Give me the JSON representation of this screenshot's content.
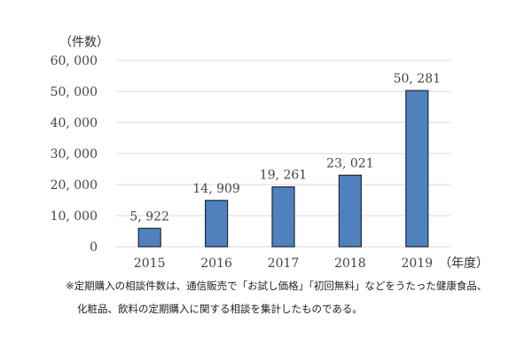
{
  "chart_data": {
    "type": "bar",
    "title": "",
    "ylabel": "（件数）",
    "xlabel": "（年度）",
    "categories": [
      "2015",
      "2016",
      "2017",
      "2018",
      "2019"
    ],
    "values": [
      5922,
      14909,
      19261,
      23021,
      50281
    ],
    "value_labels": [
      "5, 922",
      "14, 909",
      "19, 261",
      "23, 021",
      "50, 281"
    ],
    "ylim": [
      0,
      60000
    ],
    "yticks": [
      0,
      10000,
      20000,
      30000,
      40000,
      50000,
      60000
    ],
    "ytick_labels": [
      "0",
      "10, 000",
      "20, 000",
      "30, 000",
      "40, 000",
      "50, 000",
      "60, 000"
    ],
    "grid": true,
    "bar_color": "#4f81bd",
    "bar_edge_color": "#1f2a38",
    "grid_color": "#d9d9d9"
  },
  "footnote": {
    "line1": "※定期購入の相談件数は、通信販売で「お試し価格」「初回無料」などをうたった健康食品、",
    "line2": "化粧品、飲料の定期購入に関する相談を集計したものである。"
  }
}
